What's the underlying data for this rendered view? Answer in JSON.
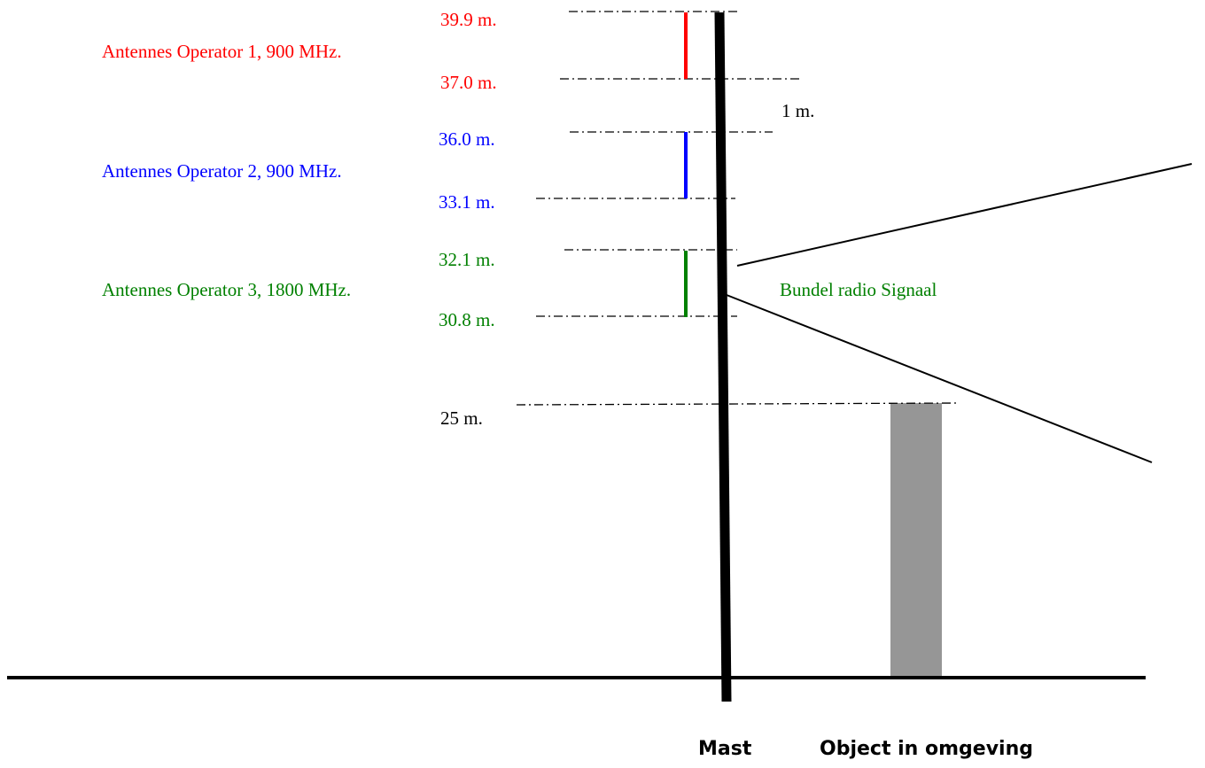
{
  "colors": {
    "operator_1": "#ff0000",
    "operator_2": "#0000ff",
    "operator_3": "#008000",
    "object": "#969696",
    "black": "#000000"
  },
  "operators": [
    {
      "label": "Antennes Operator 1, 900 MHz.",
      "top_label": "39.9 m.",
      "bottom_label": "37.0 m.",
      "top_m": 39.9,
      "bottom_m": 37.0,
      "color": "#ff0000"
    },
    {
      "label": "Antennes Operator 2, 900 MHz.",
      "top_label": "36.0 m.",
      "bottom_label": "33.1 m.",
      "top_m": 36.0,
      "bottom_m": 33.1,
      "color": "#0000ff"
    },
    {
      "label": "Antennes Operator 3, 1800 MHz.",
      "top_label": "32.1 m.",
      "bottom_label": "30.8 m.",
      "top_m": 32.1,
      "bottom_m": 30.8,
      "color": "#008000"
    }
  ],
  "spacing_label": "1 m.",
  "beam_label": "Bundel radio Signaal",
  "object_height_label": "25 m.",
  "object_height_m": 25,
  "mast_label": "Mast",
  "object_label": "Object in omgeving"
}
